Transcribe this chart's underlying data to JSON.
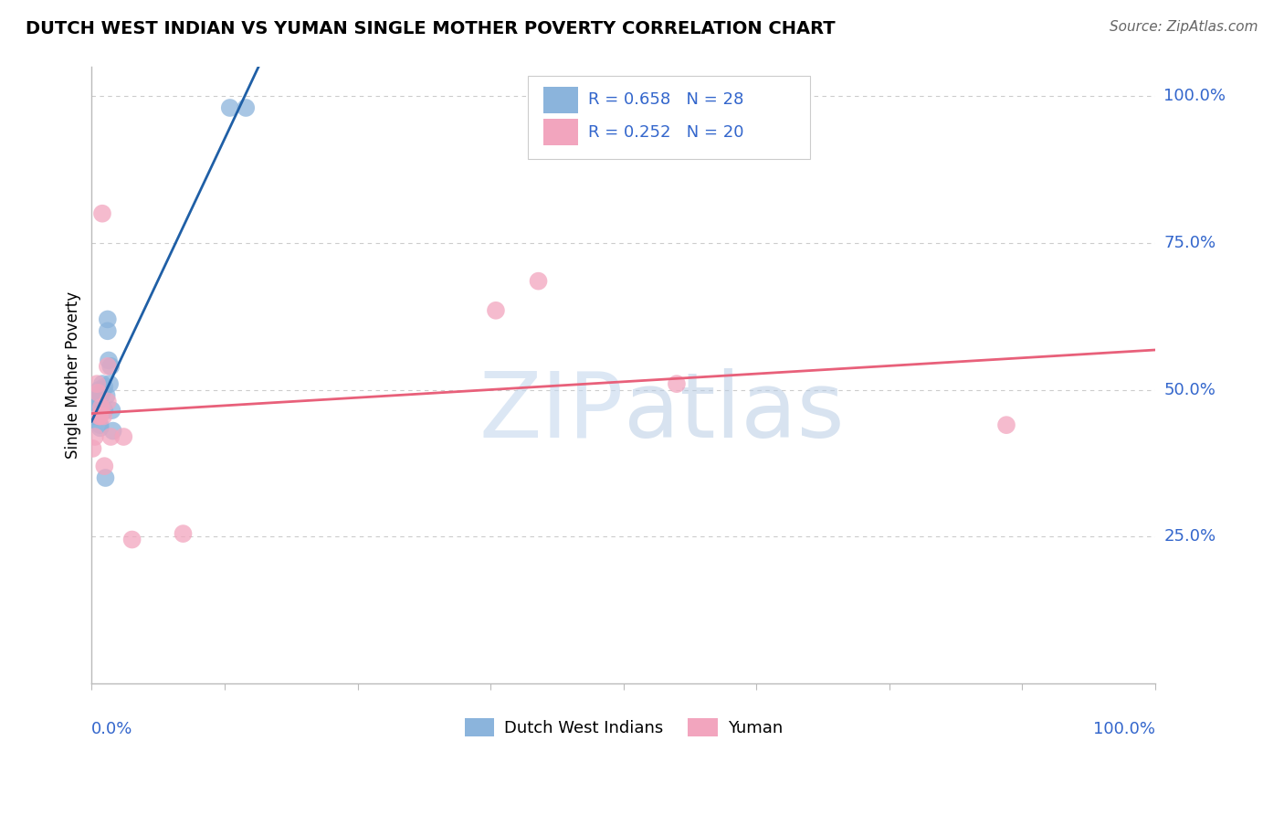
{
  "title": "DUTCH WEST INDIAN VS YUMAN SINGLE MOTHER POVERTY CORRELATION CHART",
  "source": "Source: ZipAtlas.com",
  "ylabel": "Single Mother Poverty",
  "watermark": "ZIPatlas",
  "blue_R": 0.658,
  "blue_N": 28,
  "pink_R": 0.252,
  "pink_N": 20,
  "blue_x": [
    0.001,
    0.002,
    0.003,
    0.004,
    0.005,
    0.005,
    0.006,
    0.006,
    0.007,
    0.007,
    0.008,
    0.008,
    0.009,
    0.01,
    0.011,
    0.012,
    0.012,
    0.013,
    0.014,
    0.015,
    0.015,
    0.016,
    0.017,
    0.018,
    0.019,
    0.02,
    0.13,
    0.145
  ],
  "blue_y": [
    0.455,
    0.48,
    0.485,
    0.49,
    0.455,
    0.46,
    0.455,
    0.46,
    0.465,
    0.5,
    0.435,
    0.44,
    0.49,
    0.51,
    0.5,
    0.505,
    0.465,
    0.35,
    0.49,
    0.62,
    0.6,
    0.55,
    0.51,
    0.54,
    0.465,
    0.43,
    0.98,
    0.98
  ],
  "pink_x": [
    0.001,
    0.003,
    0.005,
    0.006,
    0.007,
    0.008,
    0.009,
    0.01,
    0.011,
    0.012,
    0.015,
    0.015,
    0.018,
    0.03,
    0.038,
    0.086,
    0.38,
    0.42,
    0.55,
    0.86
  ],
  "pink_y": [
    0.4,
    0.42,
    0.51,
    0.495,
    0.455,
    0.455,
    0.47,
    0.8,
    0.455,
    0.37,
    0.54,
    0.48,
    0.42,
    0.42,
    0.245,
    0.255,
    0.635,
    0.685,
    0.51,
    0.44
  ],
  "blue_color": "#8BB4DC",
  "pink_color": "#F2A5BE",
  "blue_line_color": "#1F5FA6",
  "pink_line_color": "#E8607A",
  "grid_color": "#CCCCCC",
  "text_color": "#3366CC",
  "axis_color": "#BBBBBB",
  "background_color": "#FFFFFF"
}
